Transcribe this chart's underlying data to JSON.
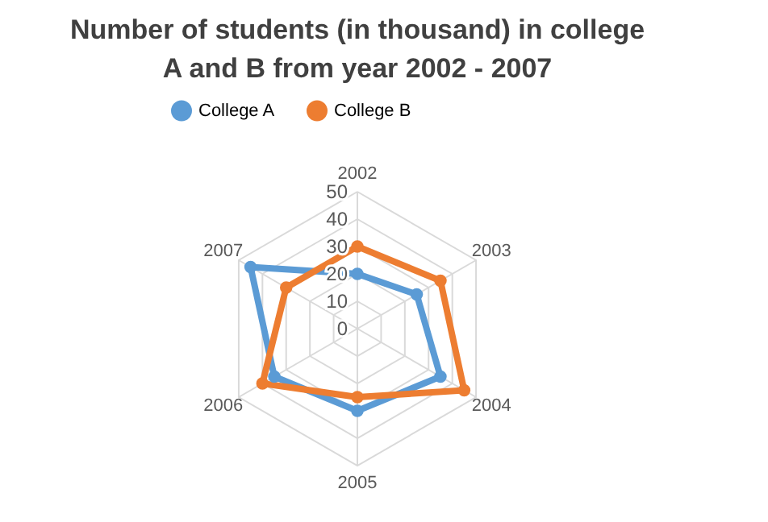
{
  "chart_data": {
    "type": "radar",
    "title": "Number of students  (in thousand)  in college A and B from year 2002 - 2007",
    "categories": [
      "2002",
      "2003",
      "2004",
      "2005",
      "2006",
      "2007"
    ],
    "ylim": [
      0,
      50
    ],
    "yticks": [
      0,
      10,
      20,
      30,
      40,
      50
    ],
    "grid": true,
    "legend": "top",
    "marker": "circle",
    "series": [
      {
        "name": "College A",
        "color": "#5b9bd5",
        "values": [
          20,
          25,
          35,
          30,
          35,
          45
        ]
      },
      {
        "name": "College B",
        "color": "#ed7d31",
        "values": [
          30,
          35,
          45,
          25,
          40,
          30
        ]
      }
    ]
  }
}
